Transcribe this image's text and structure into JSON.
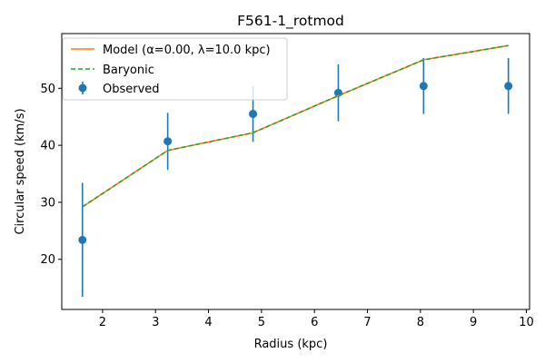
{
  "chart_data": {
    "type": "line",
    "title": "F561-1_rotmod",
    "xlabel": "Radius (kpc)",
    "ylabel": "Circular speed (km/s)",
    "xlim": [
      1.23,
      10.06
    ],
    "ylim": [
      11.2,
      59.6
    ],
    "xticks": [
      2,
      3,
      4,
      5,
      6,
      7,
      8,
      9,
      10
    ],
    "yticks": [
      20,
      30,
      40,
      50
    ],
    "grid": false,
    "legend_position": "upper-left",
    "series": [
      {
        "name": "Model (α=0.00, λ=10.0 kpc)",
        "kind": "line",
        "color": "#ff7f0e",
        "x": [
          1.62,
          3.23,
          4.84,
          6.45,
          8.06,
          9.66
        ],
        "y": [
          29.2,
          39.1,
          42.2,
          48.7,
          55.0,
          57.5
        ]
      },
      {
        "name": "Baryonic",
        "kind": "dashed-line",
        "color": "#2ca02c",
        "x": [
          1.62,
          3.23,
          4.84,
          6.45,
          8.06,
          9.66
        ],
        "y": [
          29.2,
          39.1,
          42.2,
          48.7,
          55.0,
          57.5
        ]
      },
      {
        "name": "Observed",
        "kind": "errorbar",
        "color": "#1f77b4",
        "x": [
          1.62,
          3.23,
          4.84,
          6.45,
          8.06,
          9.66
        ],
        "y": [
          23.4,
          40.7,
          45.5,
          49.2,
          50.4,
          50.4
        ],
        "err": [
          10.0,
          5.0,
          4.9,
          5.0,
          4.9,
          4.9
        ]
      }
    ]
  }
}
